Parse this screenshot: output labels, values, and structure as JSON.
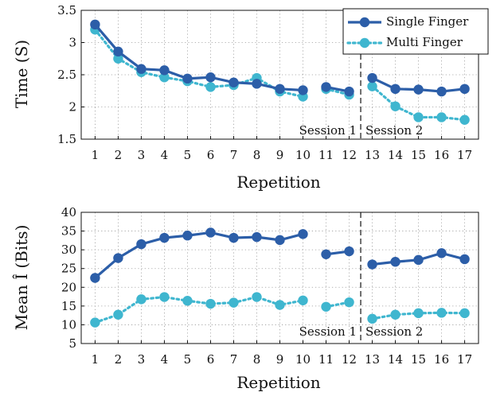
{
  "chart_data": [
    {
      "type": "line",
      "xlabel": "Repetition",
      "ylabel": "Time (S)",
      "categories": [
        1,
        2,
        3,
        4,
        5,
        6,
        7,
        8,
        9,
        10,
        11,
        12,
        13,
        14,
        15,
        16,
        17
      ],
      "xticks": [
        "1",
        "2",
        "3",
        "4",
        "5",
        "6",
        "7",
        "8",
        "9",
        "10",
        "11",
        "12",
        "13",
        "14",
        "15",
        "16",
        "17"
      ],
      "ylim": [
        1.5,
        3.5
      ],
      "yticks": [
        "1.5",
        "2",
        "2.5",
        "3",
        "3.5"
      ],
      "ytick_values": [
        1.5,
        2,
        2.5,
        3,
        3.5
      ],
      "grid": true,
      "legend": "top-right",
      "segments": [
        [
          1,
          10
        ],
        [
          11,
          12
        ],
        [
          13,
          17
        ]
      ],
      "session_divider": 12.5,
      "session_labels": [
        "Session 1",
        "Session 2"
      ],
      "series": [
        {
          "name": "Single Finger",
          "color": "#2c5ea8",
          "linestyle": "solid",
          "values": [
            3.28,
            2.86,
            2.59,
            2.57,
            2.44,
            2.46,
            2.38,
            2.36,
            2.28,
            2.26,
            2.31,
            2.24,
            2.45,
            2.28,
            2.27,
            2.24,
            2.28
          ]
        },
        {
          "name": "Multi Finger",
          "color": "#3fb6cf",
          "linestyle": "dotted",
          "values": [
            3.2,
            2.75,
            2.54,
            2.46,
            2.4,
            2.31,
            2.34,
            2.45,
            2.24,
            2.16,
            2.28,
            2.19,
            2.32,
            2.01,
            1.84,
            1.84,
            1.8
          ]
        }
      ]
    },
    {
      "type": "line",
      "xlabel": "Repetition",
      "ylabel": "Mean Î (Bits)",
      "categories": [
        1,
        2,
        3,
        4,
        5,
        6,
        7,
        8,
        9,
        10,
        11,
        12,
        13,
        14,
        15,
        16,
        17
      ],
      "xticks": [
        "1",
        "2",
        "3",
        "4",
        "5",
        "6",
        "7",
        "8",
        "9",
        "10",
        "11",
        "12",
        "13",
        "14",
        "15",
        "16",
        "17"
      ],
      "ylim": [
        5,
        40
      ],
      "yticks": [
        "5",
        "10",
        "15",
        "20",
        "25",
        "30",
        "35",
        "40"
      ],
      "ytick_values": [
        5,
        10,
        15,
        20,
        25,
        30,
        35,
        40
      ],
      "grid": true,
      "segments": [
        [
          1,
          10
        ],
        [
          11,
          12
        ],
        [
          13,
          17
        ]
      ],
      "session_divider": 12.5,
      "session_labels": [
        "Session 1",
        "Session 2"
      ],
      "series": [
        {
          "name": "Single Finger",
          "color": "#2c5ea8",
          "linestyle": "solid",
          "values": [
            22.5,
            27.8,
            31.5,
            33.2,
            33.8,
            34.6,
            33.2,
            33.4,
            32.6,
            34.2,
            28.8,
            29.6,
            26.1,
            26.8,
            27.3,
            29.1,
            27.5
          ]
        },
        {
          "name": "Multi Finger",
          "color": "#3fb6cf",
          "linestyle": "dotted",
          "values": [
            10.6,
            12.7,
            16.8,
            17.4,
            16.4,
            15.6,
            15.9,
            17.4,
            15.3,
            16.5,
            14.8,
            16.0,
            11.6,
            12.7,
            13.1,
            13.2,
            13.1
          ]
        }
      ]
    }
  ]
}
